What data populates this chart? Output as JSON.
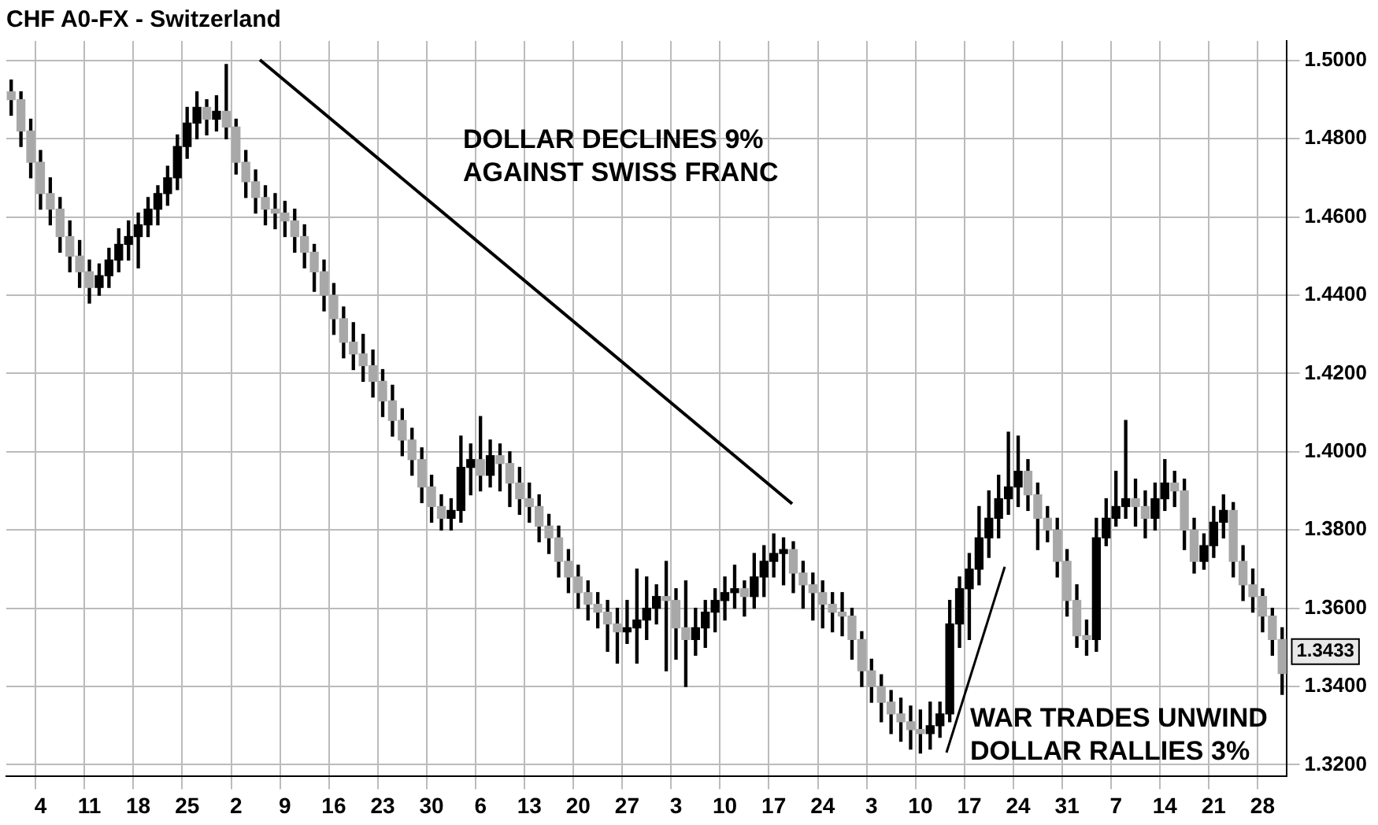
{
  "chart_data": {
    "type": "candlestick",
    "title": "CHF A0-FX - Switzerland",
    "categories": [
      null,
      null,
      null,
      "4",
      null,
      null,
      null,
      null,
      "11",
      null,
      null,
      null,
      null,
      "18",
      null,
      null,
      null,
      null,
      "25",
      null,
      null,
      null,
      null,
      "2",
      null,
      null,
      null,
      null,
      "9",
      null,
      null,
      null,
      null,
      "16",
      null,
      null,
      null,
      null,
      "23",
      null,
      null,
      null,
      null,
      "30",
      null,
      null,
      null,
      null,
      "6",
      null,
      null,
      null,
      null,
      "13",
      null,
      null,
      null,
      null,
      "20",
      null,
      null,
      null,
      null,
      "27",
      null,
      null,
      null,
      null,
      "3",
      null,
      null,
      null,
      null,
      "10",
      null,
      null,
      null,
      null,
      "17",
      null,
      null,
      null,
      null,
      "24",
      null,
      null,
      null,
      null,
      "3",
      null,
      null,
      null,
      null,
      "10",
      null,
      null,
      null,
      null,
      "17",
      null,
      null,
      null,
      null,
      "24",
      null,
      null,
      null,
      null,
      "31",
      null,
      null,
      null,
      null,
      "7",
      null,
      null,
      null,
      null,
      "14",
      null,
      null,
      null,
      null,
      "21",
      null,
      null,
      null,
      null,
      "28",
      null,
      null
    ],
    "ohlc": [
      [
        1.492,
        1.495,
        1.486,
        1.49
      ],
      [
        1.49,
        1.492,
        1.478,
        1.482
      ],
      [
        1.482,
        1.485,
        1.47,
        1.474
      ],
      [
        1.474,
        1.477,
        1.462,
        1.466
      ],
      [
        1.466,
        1.47,
        1.458,
        1.462
      ],
      [
        1.462,
        1.465,
        1.451,
        1.455
      ],
      [
        1.455,
        1.459,
        1.446,
        1.45
      ],
      [
        1.45,
        1.454,
        1.442,
        1.446
      ],
      [
        1.446,
        1.449,
        1.438,
        1.442
      ],
      [
        1.442,
        1.448,
        1.44,
        1.445
      ],
      [
        1.445,
        1.452,
        1.442,
        1.449
      ],
      [
        1.449,
        1.457,
        1.446,
        1.453
      ],
      [
        1.453,
        1.459,
        1.449,
        1.455
      ],
      [
        1.455,
        1.461,
        1.447,
        1.458
      ],
      [
        1.458,
        1.465,
        1.455,
        1.462
      ],
      [
        1.462,
        1.468,
        1.458,
        1.466
      ],
      [
        1.466,
        1.473,
        1.463,
        1.47
      ],
      [
        1.47,
        1.481,
        1.467,
        1.478
      ],
      [
        1.478,
        1.488,
        1.475,
        1.484
      ],
      [
        1.484,
        1.492,
        1.48,
        1.488
      ],
      [
        1.488,
        1.49,
        1.481,
        1.485
      ],
      [
        1.485,
        1.491,
        1.482,
        1.487
      ],
      [
        1.487,
        1.499,
        1.48,
        1.483
      ],
      [
        1.483,
        1.485,
        1.471,
        1.474
      ],
      [
        1.474,
        1.477,
        1.465,
        1.469
      ],
      [
        1.469,
        1.472,
        1.461,
        1.465
      ],
      [
        1.465,
        1.468,
        1.458,
        1.462
      ],
      [
        1.462,
        1.466,
        1.457,
        1.461
      ],
      [
        1.461,
        1.464,
        1.455,
        1.459
      ],
      [
        1.459,
        1.462,
        1.451,
        1.455
      ],
      [
        1.455,
        1.458,
        1.447,
        1.451
      ],
      [
        1.451,
        1.453,
        1.441,
        1.446
      ],
      [
        1.446,
        1.449,
        1.436,
        1.44
      ],
      [
        1.44,
        1.443,
        1.43,
        1.434
      ],
      [
        1.434,
        1.437,
        1.424,
        1.428
      ],
      [
        1.428,
        1.433,
        1.421,
        1.425
      ],
      [
        1.425,
        1.43,
        1.418,
        1.422
      ],
      [
        1.422,
        1.426,
        1.414,
        1.418
      ],
      [
        1.418,
        1.421,
        1.409,
        1.413
      ],
      [
        1.413,
        1.417,
        1.404,
        1.408
      ],
      [
        1.408,
        1.411,
        1.399,
        1.403
      ],
      [
        1.403,
        1.406,
        1.394,
        1.398
      ],
      [
        1.398,
        1.401,
        1.387,
        1.391
      ],
      [
        1.391,
        1.394,
        1.382,
        1.386
      ],
      [
        1.386,
        1.389,
        1.38,
        1.383
      ],
      [
        1.383,
        1.388,
        1.38,
        1.385
      ],
      [
        1.385,
        1.404,
        1.382,
        1.396
      ],
      [
        1.396,
        1.402,
        1.389,
        1.398
      ],
      [
        1.398,
        1.409,
        1.39,
        1.394
      ],
      [
        1.394,
        1.403,
        1.391,
        1.399
      ],
      [
        1.399,
        1.402,
        1.39,
        1.397
      ],
      [
        1.397,
        1.4,
        1.386,
        1.392
      ],
      [
        1.392,
        1.396,
        1.384,
        1.388
      ],
      [
        1.388,
        1.392,
        1.382,
        1.386
      ],
      [
        1.386,
        1.389,
        1.377,
        1.381
      ],
      [
        1.381,
        1.384,
        1.374,
        1.378
      ],
      [
        1.378,
        1.381,
        1.368,
        1.372
      ],
      [
        1.372,
        1.375,
        1.364,
        1.368
      ],
      [
        1.368,
        1.371,
        1.36,
        1.364
      ],
      [
        1.364,
        1.367,
        1.357,
        1.361
      ],
      [
        1.361,
        1.364,
        1.355,
        1.359
      ],
      [
        1.359,
        1.362,
        1.349,
        1.356
      ],
      [
        1.356,
        1.36,
        1.346,
        1.354
      ],
      [
        1.354,
        1.362,
        1.351,
        1.355
      ],
      [
        1.355,
        1.37,
        1.346,
        1.357
      ],
      [
        1.357,
        1.368,
        1.352,
        1.36
      ],
      [
        1.36,
        1.366,
        1.356,
        1.363
      ],
      [
        1.363,
        1.372,
        1.344,
        1.362
      ],
      [
        1.362,
        1.365,
        1.347,
        1.355
      ],
      [
        1.355,
        1.367,
        1.34,
        1.352
      ],
      [
        1.352,
        1.36,
        1.348,
        1.355
      ],
      [
        1.355,
        1.362,
        1.35,
        1.359
      ],
      [
        1.359,
        1.365,
        1.354,
        1.362
      ],
      [
        1.362,
        1.368,
        1.357,
        1.364
      ],
      [
        1.364,
        1.371,
        1.36,
        1.365
      ],
      [
        1.365,
        1.367,
        1.358,
        1.363
      ],
      [
        1.363,
        1.374,
        1.36,
        1.368
      ],
      [
        1.368,
        1.376,
        1.363,
        1.372
      ],
      [
        1.372,
        1.379,
        1.368,
        1.374
      ],
      [
        1.374,
        1.378,
        1.366,
        1.375
      ],
      [
        1.375,
        1.377,
        1.364,
        1.369
      ],
      [
        1.369,
        1.372,
        1.36,
        1.366
      ],
      [
        1.366,
        1.369,
        1.357,
        1.364
      ],
      [
        1.364,
        1.367,
        1.355,
        1.361
      ],
      [
        1.361,
        1.364,
        1.354,
        1.359
      ],
      [
        1.359,
        1.364,
        1.353,
        1.358
      ],
      [
        1.358,
        1.36,
        1.347,
        1.352
      ],
      [
        1.352,
        1.354,
        1.34,
        1.344
      ],
      [
        1.344,
        1.347,
        1.336,
        1.34
      ],
      [
        1.34,
        1.343,
        1.331,
        1.336
      ],
      [
        1.336,
        1.339,
        1.328,
        1.333
      ],
      [
        1.333,
        1.337,
        1.326,
        1.331
      ],
      [
        1.331,
        1.335,
        1.324,
        1.329
      ],
      [
        1.329,
        1.334,
        1.323,
        1.328
      ],
      [
        1.328,
        1.336,
        1.324,
        1.33
      ],
      [
        1.33,
        1.336,
        1.327,
        1.333
      ],
      [
        1.333,
        1.362,
        1.331,
        1.356
      ],
      [
        1.356,
        1.368,
        1.35,
        1.365
      ],
      [
        1.365,
        1.374,
        1.352,
        1.37
      ],
      [
        1.37,
        1.386,
        1.366,
        1.378
      ],
      [
        1.378,
        1.39,
        1.373,
        1.383
      ],
      [
        1.383,
        1.394,
        1.378,
        1.388
      ],
      [
        1.388,
        1.405,
        1.384,
        1.391
      ],
      [
        1.391,
        1.404,
        1.386,
        1.395
      ],
      [
        1.395,
        1.398,
        1.385,
        1.389
      ],
      [
        1.389,
        1.392,
        1.375,
        1.383
      ],
      [
        1.383,
        1.386,
        1.377,
        1.38
      ],
      [
        1.38,
        1.383,
        1.368,
        1.372
      ],
      [
        1.372,
        1.375,
        1.358,
        1.362
      ],
      [
        1.362,
        1.366,
        1.35,
        1.353
      ],
      [
        1.353,
        1.357,
        1.348,
        1.352
      ],
      [
        1.352,
        1.383,
        1.349,
        1.378
      ],
      [
        1.378,
        1.388,
        1.376,
        1.383
      ],
      [
        1.383,
        1.395,
        1.381,
        1.386
      ],
      [
        1.386,
        1.408,
        1.383,
        1.388
      ],
      [
        1.388,
        1.393,
        1.381,
        1.386
      ],
      [
        1.386,
        1.39,
        1.378,
        1.383
      ],
      [
        1.383,
        1.392,
        1.38,
        1.388
      ],
      [
        1.388,
        1.398,
        1.385,
        1.392
      ],
      [
        1.392,
        1.395,
        1.386,
        1.39
      ],
      [
        1.39,
        1.393,
        1.375,
        1.38
      ],
      [
        1.38,
        1.383,
        1.369,
        1.372
      ],
      [
        1.372,
        1.379,
        1.37,
        1.376
      ],
      [
        1.376,
        1.386,
        1.373,
        1.382
      ],
      [
        1.382,
        1.389,
        1.378,
        1.385
      ],
      [
        1.385,
        1.387,
        1.368,
        1.372
      ],
      [
        1.372,
        1.376,
        1.362,
        1.366
      ],
      [
        1.366,
        1.37,
        1.359,
        1.363
      ],
      [
        1.363,
        1.365,
        1.354,
        1.358
      ],
      [
        1.358,
        1.36,
        1.348,
        1.352
      ],
      [
        1.352,
        1.355,
        1.338,
        1.3433
      ]
    ],
    "ylim": [
      1.317,
      1.505
    ],
    "yticks": [
      {
        "value": 1.32,
        "label": "1.3200"
      },
      {
        "value": 1.34,
        "label": "1.3400"
      },
      {
        "value": 1.36,
        "label": "1.3600"
      },
      {
        "value": 1.38,
        "label": "1.3800"
      },
      {
        "value": 1.4,
        "label": "1.4000"
      },
      {
        "value": 1.42,
        "label": "1.4200"
      },
      {
        "value": 1.44,
        "label": "1.4400"
      },
      {
        "value": 1.46,
        "label": "1.4600"
      },
      {
        "value": 1.48,
        "label": "1.4800"
      },
      {
        "value": 1.5,
        "label": "1.5000"
      }
    ],
    "grid": true,
    "annotations": [
      "DOLLAR DECLINES 9%\nAGAINST SWISS FRANC",
      "WAR TRADES UNWIND\nDOLLAR RALLIES 3%",
      "1.3433"
    ]
  }
}
